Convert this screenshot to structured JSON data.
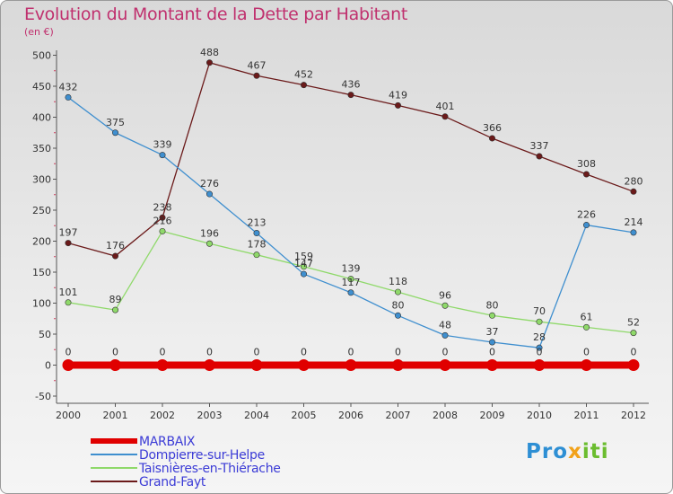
{
  "chart_data": {
    "type": "line",
    "title": "Evolution du Montant de la Dette par Habitant",
    "subtitle": "(en €)",
    "x": [
      "2000",
      "2001",
      "2002",
      "2003",
      "2004",
      "2005",
      "2006",
      "2007",
      "2008",
      "2009",
      "2010",
      "2011",
      "2012"
    ],
    "ylim": [
      -50,
      500
    ],
    "yticks": [
      -50,
      0,
      50,
      100,
      150,
      200,
      250,
      300,
      350,
      400,
      450,
      500
    ],
    "grid": false,
    "legend_position": "bottom-left",
    "series": [
      {
        "name": "MARBAIX",
        "color": "#e00000",
        "values": [
          0,
          0,
          0,
          0,
          0,
          0,
          0,
          0,
          0,
          0,
          0,
          0,
          0
        ]
      },
      {
        "name": "Dompierre-sur-Helpe",
        "color": "#3f8fcf",
        "values": [
          432,
          375,
          339,
          276,
          213,
          147,
          117,
          80,
          48,
          37,
          28,
          226,
          214
        ]
      },
      {
        "name": "Taisnières-en-Thiérache",
        "color": "#8fd96a",
        "values": [
          101,
          89,
          216,
          196,
          178,
          159,
          139,
          118,
          96,
          80,
          70,
          61,
          52
        ]
      },
      {
        "name": "Grand-Fayt",
        "color": "#6b1a1a",
        "values": [
          197,
          176,
          238,
          488,
          467,
          452,
          436,
          419,
          401,
          366,
          337,
          308,
          280
        ]
      }
    ]
  },
  "brand": {
    "logo_text": [
      "Pro",
      "x",
      "iti"
    ]
  }
}
